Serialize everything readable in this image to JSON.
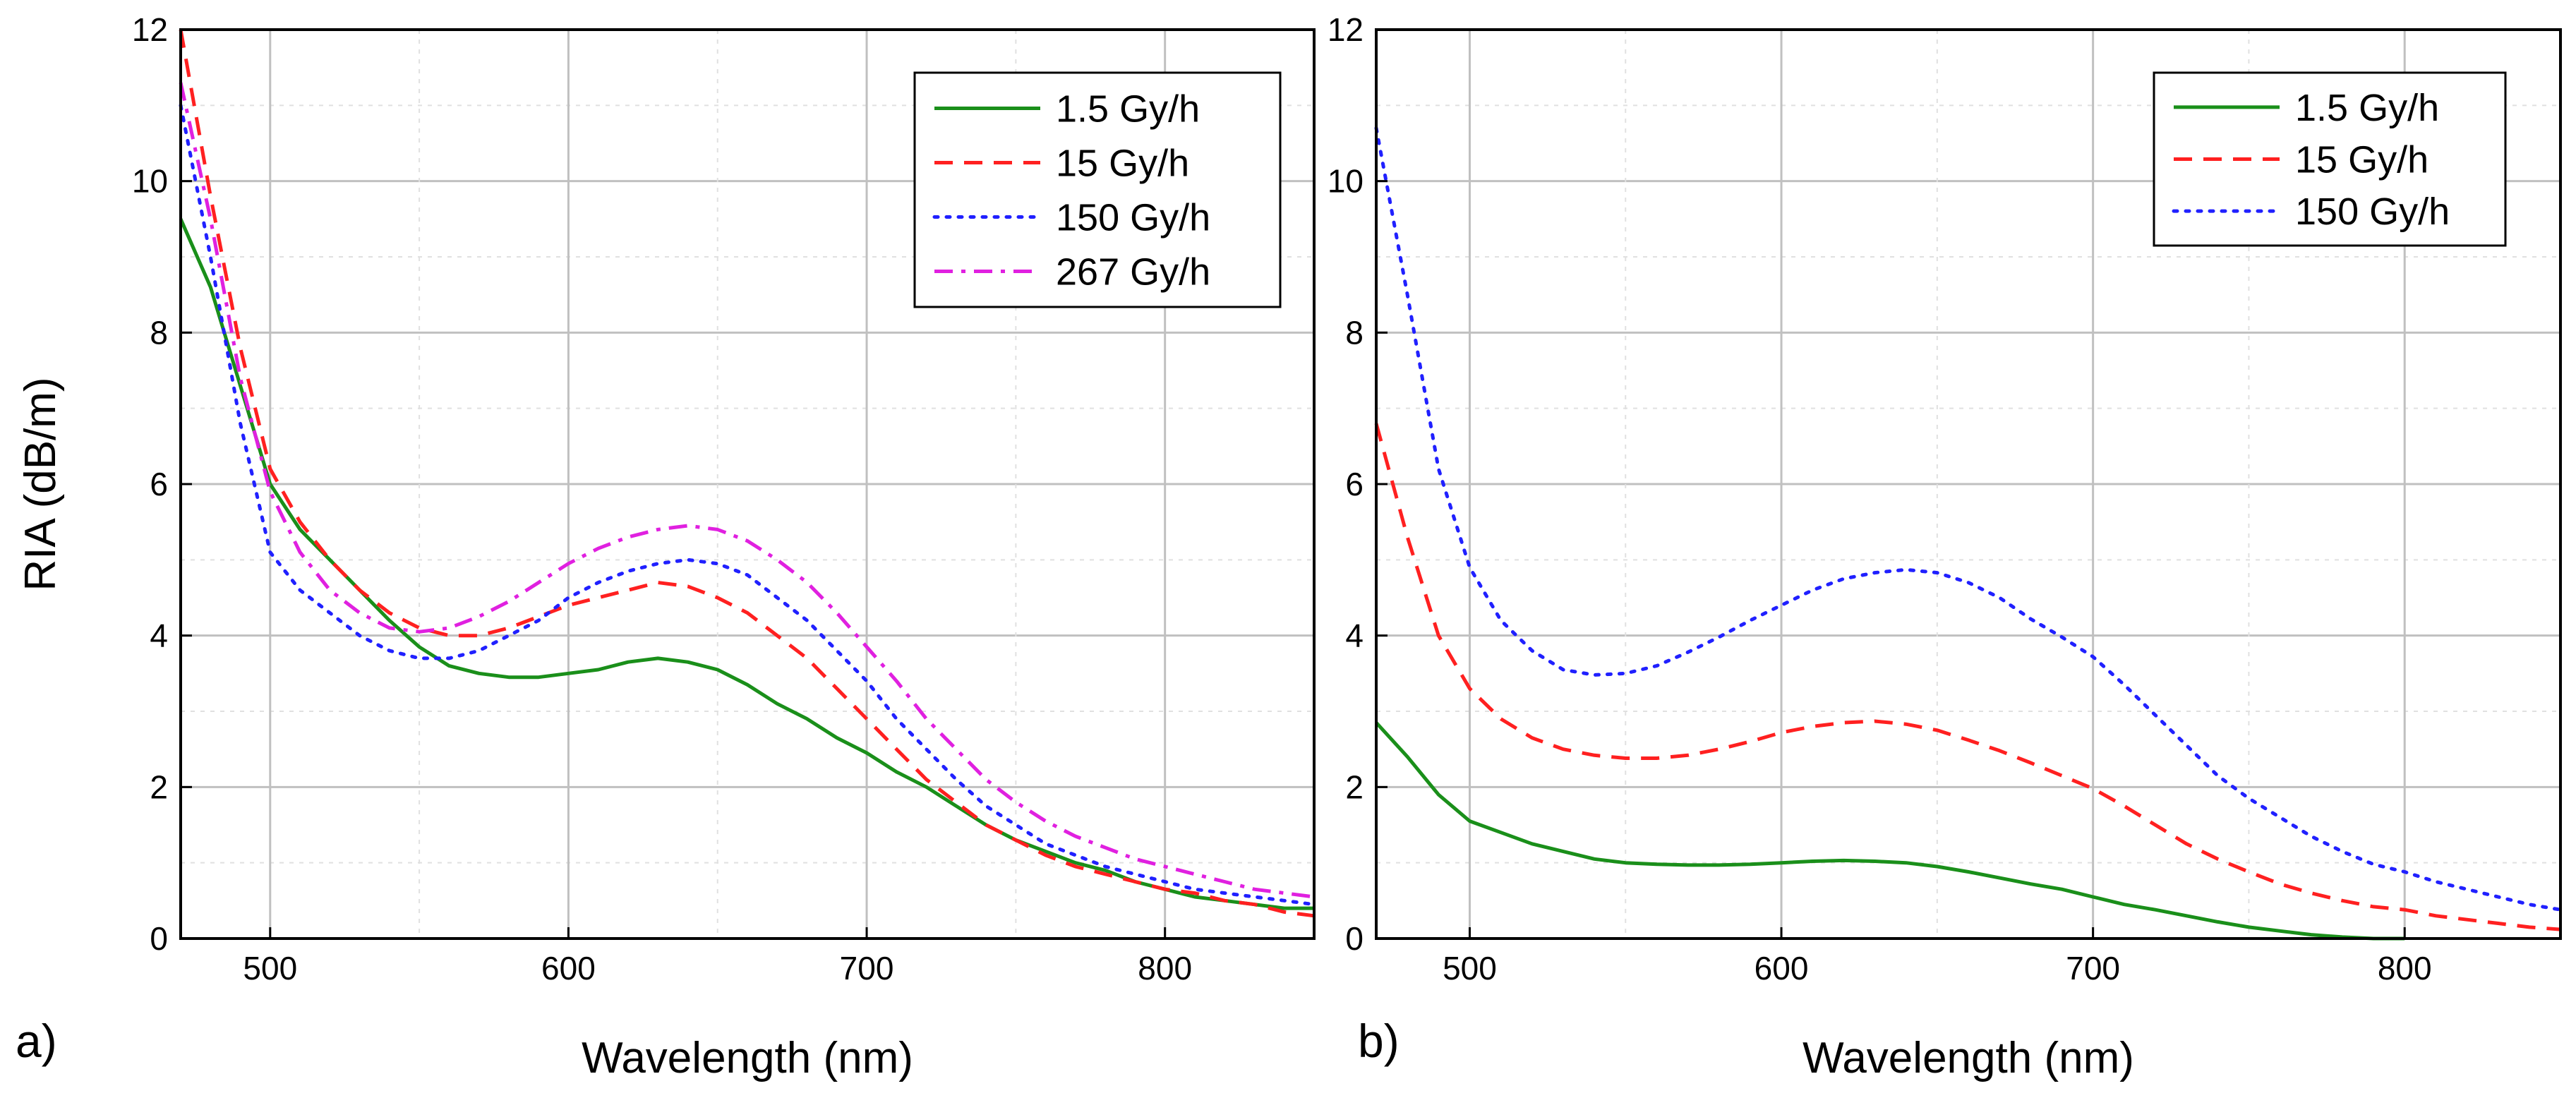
{
  "figure": {
    "ylabel_shared": "RIA (dB/m)"
  },
  "colors": {
    "s1": "#1a8f1a",
    "s2": "#ff2020",
    "s3": "#2020ff",
    "s4": "#e020e0",
    "grid": "#c0c0c0",
    "gridMinor": "#e0e0e0"
  },
  "chart_data": [
    {
      "type": "line",
      "panel_label": "a)",
      "title": "",
      "xlabel": "Wavelength (nm)",
      "ylabel": "RIA (dB/m)",
      "xlim": [
        470,
        850
      ],
      "ylim": [
        0,
        12
      ],
      "xticks": [
        500,
        600,
        700,
        800
      ],
      "yticks": [
        0,
        2,
        4,
        6,
        8,
        10,
        12
      ],
      "legend_position": "top-right",
      "series": [
        {
          "name": "1.5 Gy/h",
          "color": "#1a8f1a",
          "dash": "solid",
          "x": [
            470,
            480,
            490,
            500,
            510,
            520,
            530,
            540,
            550,
            560,
            570,
            580,
            590,
            600,
            610,
            620,
            630,
            640,
            650,
            660,
            670,
            680,
            690,
            700,
            710,
            720,
            730,
            740,
            750,
            760,
            770,
            780,
            790,
            800,
            810,
            820,
            830,
            840,
            850
          ],
          "y": [
            9.5,
            8.6,
            7.3,
            6.0,
            5.4,
            5.0,
            4.6,
            4.2,
            3.85,
            3.6,
            3.5,
            3.45,
            3.45,
            3.5,
            3.55,
            3.65,
            3.7,
            3.65,
            3.55,
            3.35,
            3.1,
            2.9,
            2.65,
            2.45,
            2.2,
            2.0,
            1.75,
            1.5,
            1.3,
            1.15,
            1.0,
            0.9,
            0.75,
            0.65,
            0.55,
            0.5,
            0.45,
            0.4,
            0.4
          ]
        },
        {
          "name": "15 Gy/h",
          "color": "#ff2020",
          "dash": "dashed",
          "x": [
            470,
            480,
            490,
            500,
            510,
            520,
            530,
            540,
            550,
            560,
            570,
            580,
            590,
            600,
            610,
            620,
            630,
            640,
            650,
            660,
            670,
            680,
            690,
            700,
            710,
            720,
            730,
            740,
            750,
            760,
            770,
            780,
            790,
            800,
            810,
            820,
            830,
            840,
            850
          ],
          "y": [
            12.0,
            9.8,
            7.8,
            6.2,
            5.5,
            5.0,
            4.6,
            4.3,
            4.1,
            4.0,
            4.0,
            4.1,
            4.25,
            4.4,
            4.5,
            4.6,
            4.7,
            4.65,
            4.5,
            4.3,
            4.0,
            3.7,
            3.3,
            2.9,
            2.5,
            2.1,
            1.8,
            1.5,
            1.3,
            1.1,
            0.95,
            0.85,
            0.75,
            0.65,
            0.6,
            0.5,
            0.45,
            0.35,
            0.3
          ]
        },
        {
          "name": "150 Gy/h",
          "color": "#2020ff",
          "dash": "dotted",
          "x": [
            470,
            480,
            490,
            500,
            510,
            520,
            530,
            540,
            550,
            560,
            570,
            580,
            590,
            600,
            610,
            620,
            630,
            640,
            650,
            660,
            670,
            680,
            690,
            700,
            710,
            720,
            730,
            740,
            750,
            760,
            770,
            780,
            790,
            800,
            810,
            820,
            830,
            840,
            850
          ],
          "y": [
            11.0,
            9.0,
            6.8,
            5.1,
            4.6,
            4.3,
            4.0,
            3.8,
            3.7,
            3.7,
            3.8,
            4.0,
            4.2,
            4.5,
            4.7,
            4.85,
            4.95,
            5.0,
            4.95,
            4.8,
            4.5,
            4.2,
            3.8,
            3.4,
            2.9,
            2.5,
            2.1,
            1.75,
            1.5,
            1.25,
            1.1,
            0.95,
            0.85,
            0.75,
            0.65,
            0.6,
            0.55,
            0.5,
            0.45
          ]
        },
        {
          "name": "267 Gy/h",
          "color": "#e020e0",
          "dash": "dashdot",
          "x": [
            470,
            480,
            490,
            500,
            510,
            520,
            530,
            540,
            550,
            560,
            570,
            580,
            590,
            600,
            610,
            620,
            630,
            640,
            650,
            660,
            670,
            680,
            690,
            700,
            710,
            720,
            730,
            740,
            750,
            760,
            770,
            780,
            790,
            800,
            810,
            820,
            830,
            840,
            850
          ],
          "y": [
            11.3,
            9.5,
            7.4,
            5.9,
            5.1,
            4.6,
            4.3,
            4.1,
            4.05,
            4.1,
            4.25,
            4.45,
            4.7,
            4.95,
            5.15,
            5.3,
            5.4,
            5.45,
            5.4,
            5.25,
            5.0,
            4.7,
            4.3,
            3.85,
            3.4,
            2.9,
            2.5,
            2.1,
            1.8,
            1.55,
            1.35,
            1.2,
            1.05,
            0.95,
            0.85,
            0.75,
            0.65,
            0.6,
            0.55
          ]
        }
      ]
    },
    {
      "type": "line",
      "panel_label": "b)",
      "title": "",
      "xlabel": "Wavelength (nm)",
      "ylabel": "",
      "xlim": [
        470,
        850
      ],
      "ylim": [
        0,
        12
      ],
      "xticks": [
        500,
        600,
        700,
        800
      ],
      "yticks": [
        0,
        2,
        4,
        6,
        8,
        10,
        12
      ],
      "legend_position": "top-right",
      "series": [
        {
          "name": "1.5 Gy/h",
          "color": "#1a8f1a",
          "dash": "solid",
          "x": [
            470,
            480,
            490,
            500,
            510,
            520,
            530,
            540,
            550,
            560,
            570,
            580,
            590,
            600,
            610,
            620,
            630,
            640,
            650,
            660,
            670,
            680,
            690,
            700,
            710,
            720,
            730,
            740,
            750,
            760,
            770,
            780,
            790,
            800
          ],
          "y": [
            2.85,
            2.4,
            1.9,
            1.55,
            1.4,
            1.25,
            1.15,
            1.05,
            1.0,
            0.98,
            0.97,
            0.97,
            0.98,
            1.0,
            1.02,
            1.03,
            1.02,
            1.0,
            0.95,
            0.88,
            0.8,
            0.72,
            0.65,
            0.55,
            0.45,
            0.38,
            0.3,
            0.22,
            0.15,
            0.1,
            0.05,
            0.02,
            0.0,
            0.0
          ]
        },
        {
          "name": "15 Gy/h",
          "color": "#ff2020",
          "dash": "dashed",
          "x": [
            470,
            480,
            490,
            500,
            510,
            520,
            530,
            540,
            550,
            560,
            570,
            580,
            590,
            600,
            610,
            620,
            630,
            640,
            650,
            660,
            670,
            680,
            690,
            700,
            710,
            720,
            730,
            740,
            750,
            760,
            770,
            780,
            790,
            800,
            810,
            820,
            830,
            840,
            850
          ],
          "y": [
            6.8,
            5.3,
            4.0,
            3.3,
            2.9,
            2.65,
            2.5,
            2.42,
            2.38,
            2.38,
            2.42,
            2.5,
            2.6,
            2.72,
            2.8,
            2.85,
            2.87,
            2.83,
            2.75,
            2.62,
            2.48,
            2.32,
            2.15,
            1.98,
            1.75,
            1.5,
            1.25,
            1.05,
            0.88,
            0.72,
            0.6,
            0.5,
            0.42,
            0.38,
            0.3,
            0.25,
            0.2,
            0.15,
            0.12
          ]
        },
        {
          "name": "150 Gy/h",
          "color": "#2020ff",
          "dash": "dotted",
          "x": [
            470,
            480,
            490,
            500,
            510,
            520,
            530,
            540,
            550,
            560,
            570,
            580,
            590,
            600,
            610,
            620,
            630,
            640,
            650,
            660,
            670,
            680,
            690,
            700,
            710,
            720,
            730,
            740,
            750,
            760,
            770,
            780,
            790,
            800,
            810,
            820,
            830,
            840,
            850
          ],
          "y": [
            10.7,
            8.5,
            6.2,
            4.9,
            4.2,
            3.8,
            3.55,
            3.48,
            3.5,
            3.6,
            3.78,
            3.98,
            4.2,
            4.4,
            4.6,
            4.75,
            4.83,
            4.87,
            4.83,
            4.7,
            4.5,
            4.22,
            3.98,
            3.72,
            3.35,
            2.95,
            2.55,
            2.15,
            1.85,
            1.6,
            1.35,
            1.15,
            0.98,
            0.88,
            0.75,
            0.65,
            0.55,
            0.45,
            0.38
          ]
        }
      ]
    }
  ]
}
